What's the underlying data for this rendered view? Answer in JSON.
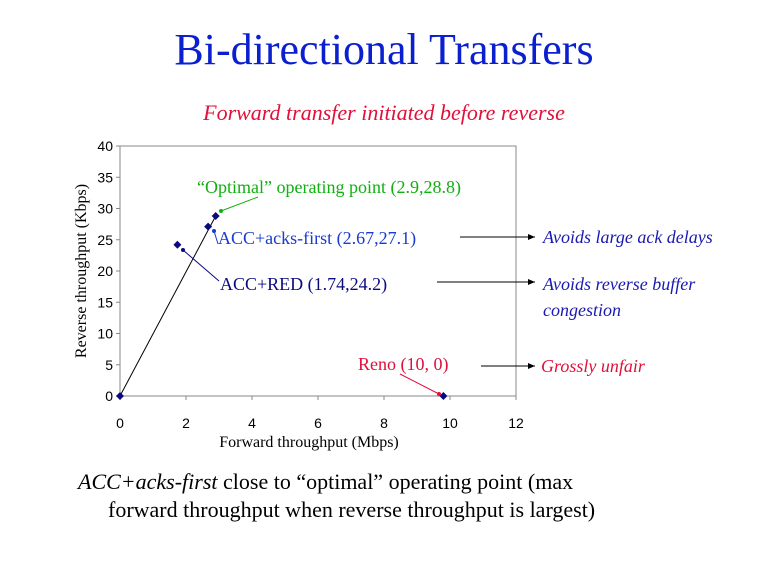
{
  "slide": {
    "title": "Bi-directional Transfers",
    "subtitle": "Forward transfer initiated before reverse",
    "conclusion_italic": "ACC+acks-first",
    "conclusion_rest": " close to “optimal” operating point  (max",
    "conclusion_line2": "forward throughput when reverse throughput is largest)",
    "notes": [
      {
        "text": "Avoids large ack delays",
        "color": "#1a1ab0"
      },
      {
        "text": "Avoids reverse buffer",
        "text2": "congestion",
        "color": "#1a1ab0"
      },
      {
        "text": "Grossly unfair",
        "color": "#e0103a"
      }
    ]
  },
  "chart_data": {
    "type": "scatter",
    "xlabel": "Forward throughput (Mbps)",
    "ylabel": "Reverse throughput (Kbps)",
    "xlim": [
      0,
      12
    ],
    "ylim": [
      0,
      40
    ],
    "xticks": [
      0,
      2,
      4,
      6,
      8,
      10,
      12
    ],
    "yticks": [
      0,
      5,
      10,
      15,
      20,
      25,
      30,
      35,
      40
    ],
    "grid": false,
    "points": [
      {
        "x": 0,
        "y": 0
      },
      {
        "x": 1.74,
        "y": 24.2
      },
      {
        "x": 2.67,
        "y": 27.1
      },
      {
        "x": 2.9,
        "y": 28.8
      },
      {
        "x": 9.8,
        "y": 0
      }
    ],
    "line": [
      {
        "x": 0,
        "y": 0
      },
      {
        "x": 2.9,
        "y": 28.8
      }
    ],
    "marker_color": "#0a0a80",
    "annotations": [
      {
        "text": "“Optimal” operating point (2.9,28.8)",
        "color": "#10b010",
        "point": 3
      },
      {
        "text": "ACC+acks-first (2.67,27.1)",
        "color": "#1a3ad0",
        "point": 2
      },
      {
        "text": "ACC+RED (1.74,24.2)",
        "color": "#0a0a80",
        "point": 1
      },
      {
        "text": "Reno (10, 0)",
        "color": "#e0103a",
        "point": 4
      }
    ]
  }
}
